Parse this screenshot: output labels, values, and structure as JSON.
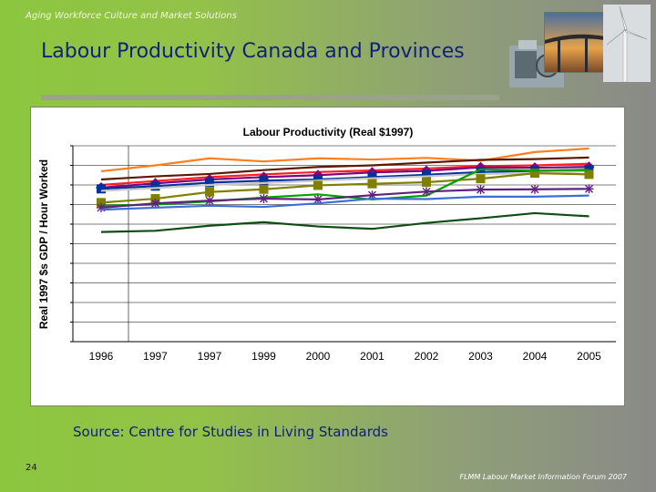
{
  "header": {
    "text": "Aging Workforce Culture and Market Solutions"
  },
  "slide": {
    "title": "Labour Productivity Canada and Provinces",
    "page_number": "24"
  },
  "source": "Source: Centre for Studies in Living  Standards",
  "footer": {
    "text": "FLMM Labour Market Information Forum 2007"
  },
  "images": {
    "bridge": "bridge-photo",
    "turbine": "wind-turbine-photo",
    "machine": "machinery-photo"
  },
  "chart_data": {
    "type": "line",
    "title": "Labour Productivity (Real $1997)",
    "ylabel": "Real 1997 $s GDP / Hour Worked",
    "xlabel": "",
    "categories": [
      "1996",
      "1997",
      "1997",
      "1999",
      "2000",
      "2001",
      "2002",
      "2003",
      "2004",
      "2005"
    ],
    "ylim": [
      0,
      50
    ],
    "grid": true,
    "series": [
      {
        "color": "#ff7f1f",
        "marker": "none",
        "values": [
          43.5,
          45.0,
          46.8,
          46.0,
          46.8,
          46.5,
          46.9,
          46.2,
          48.4,
          49.3
        ]
      },
      {
        "color": "#5a1a00",
        "marker": "none",
        "values": [
          41.4,
          42.2,
          42.8,
          43.8,
          44.6,
          45.0,
          45.7,
          46.4,
          46.6,
          47.0
        ]
      },
      {
        "color": "#ff2020",
        "marker": "none",
        "values": [
          40.0,
          41.0,
          42.0,
          42.7,
          43.3,
          43.7,
          44.2,
          44.8,
          45.0,
          45.4
        ]
      },
      {
        "color": "#800080",
        "marker": "diamond",
        "values": [
          39.3,
          40.4,
          41.4,
          42.0,
          42.5,
          43.2,
          43.6,
          44.5,
          44.4,
          44.6
        ]
      },
      {
        "color": "#003399",
        "marker": "square",
        "values": [
          39.0,
          39.7,
          40.6,
          41.1,
          41.4,
          42.0,
          42.6,
          43.3,
          43.6,
          43.9
        ]
      },
      {
        "color": "#c8c8c8",
        "marker": "none",
        "values": [
          38.5,
          39.2,
          40.0,
          40.5,
          41.1,
          41.7,
          42.2,
          42.8,
          43.0,
          43.5
        ]
      },
      {
        "color": "#808000",
        "marker": "square",
        "values": [
          35.5,
          36.5,
          38.2,
          38.9,
          39.9,
          40.3,
          40.7,
          41.6,
          43.0,
          42.7
        ]
      },
      {
        "color": "#00a000",
        "marker": "none",
        "values": [
          34.7,
          35.0,
          35.8,
          36.8,
          37.6,
          36.3,
          37.3,
          44.0,
          43.7,
          43.8
        ]
      },
      {
        "color": "#60207f",
        "marker": "asterisk",
        "values": [
          34.2,
          35.3,
          36.0,
          36.5,
          36.3,
          37.4,
          38.3,
          38.8,
          38.9,
          39.0
        ]
      },
      {
        "color": "#3b6fd6",
        "marker": "none",
        "values": [
          33.7,
          34.2,
          34.7,
          34.4,
          35.3,
          36.5,
          36.4,
          37.0,
          37.0,
          37.3
        ]
      },
      {
        "color": "#0f4d14",
        "marker": "none",
        "values": [
          28.0,
          28.3,
          29.6,
          30.5,
          29.4,
          28.8,
          30.3,
          31.5,
          32.8,
          32.0
        ]
      }
    ]
  }
}
